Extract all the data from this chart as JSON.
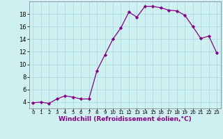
{
  "x": [
    0,
    1,
    2,
    3,
    4,
    5,
    6,
    7,
    8,
    9,
    10,
    11,
    12,
    13,
    14,
    15,
    16,
    17,
    18,
    19,
    20,
    21,
    22,
    23
  ],
  "y": [
    3.9,
    4.0,
    3.8,
    4.5,
    5.0,
    4.8,
    4.5,
    4.5,
    9.0,
    11.5,
    14.0,
    15.8,
    18.3,
    17.5,
    19.2,
    19.2,
    19.0,
    18.6,
    18.5,
    17.8,
    16.0,
    14.1,
    14.5,
    11.8
  ],
  "line_color": "#880088",
  "marker": "D",
  "marker_size": 2.2,
  "bg_color": "#cff0f0",
  "grid_color": "#aadddd",
  "xlabel": "Windchill (Refroidissement éolien,°C)",
  "xlabel_fontsize": 6.5,
  "xlabel_color": "#880088",
  "ylabel_ticks": [
    4,
    6,
    8,
    10,
    12,
    14,
    16,
    18
  ],
  "ytick_fontsize": 6.0,
  "xtick_labels": [
    "0",
    "1",
    "2",
    "3",
    "4",
    "5",
    "6",
    "7",
    "8",
    "9",
    "10",
    "11",
    "12",
    "13",
    "14",
    "15",
    "16",
    "17",
    "18",
    "19",
    "20",
    "21",
    "22",
    "23"
  ],
  "xtick_fontsize": 5.0,
  "ylim": [
    3.0,
    20.0
  ],
  "xlim": [
    -0.5,
    23.5
  ],
  "spine_color": "#888899",
  "linewidth": 0.9
}
